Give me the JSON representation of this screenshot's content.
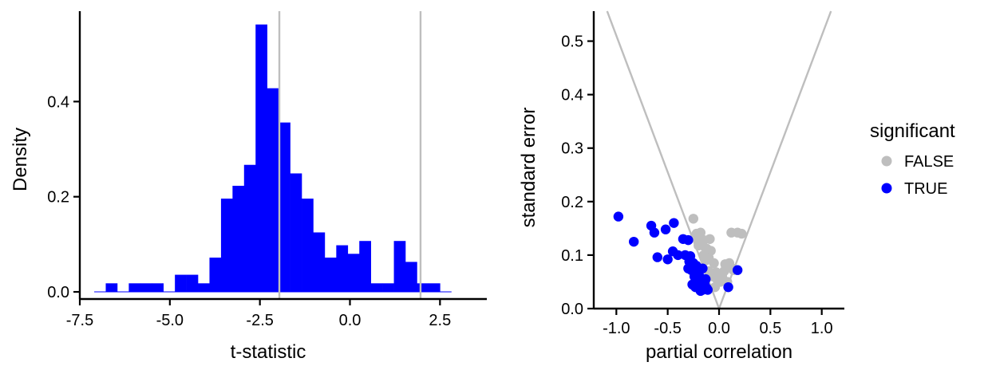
{
  "chart_data": [
    {
      "type": "histogram",
      "xlabel": "t-statistic",
      "ylabel": "Density",
      "xlim": [
        -7.5,
        3.8
      ],
      "ylim": [
        -0.015,
        0.59
      ],
      "xticks": [
        -7.5,
        -5.0,
        -2.5,
        0.0,
        2.5
      ],
      "xtick_labels": [
        "-7.5",
        "-5.0",
        "-2.5",
        "0.0",
        "2.5"
      ],
      "yticks": [
        0.0,
        0.2,
        0.4
      ],
      "ytick_labels": [
        "0.0",
        "0.2",
        "0.4"
      ],
      "bar_color": "#0000ff",
      "reference_line_color": "#bebebe",
      "reference_lines_x": [
        -1.96,
        1.96
      ],
      "bins": [
        {
          "x0": -7.1,
          "x1": -6.78,
          "density": 0.0
        },
        {
          "x0": -6.78,
          "x1": -6.46,
          "density": 0.018
        },
        {
          "x0": -6.46,
          "x1": -6.14,
          "density": 0.0
        },
        {
          "x0": -6.14,
          "x1": -5.82,
          "density": 0.018
        },
        {
          "x0": -5.82,
          "x1": -5.5,
          "density": 0.018
        },
        {
          "x0": -5.5,
          "x1": -5.18,
          "density": 0.018
        },
        {
          "x0": -5.18,
          "x1": -4.86,
          "density": 0.0
        },
        {
          "x0": -4.86,
          "x1": -4.54,
          "density": 0.036
        },
        {
          "x0": -4.54,
          "x1": -4.22,
          "density": 0.036
        },
        {
          "x0": -4.22,
          "x1": -3.9,
          "density": 0.018
        },
        {
          "x0": -3.9,
          "x1": -3.58,
          "density": 0.072
        },
        {
          "x0": -3.58,
          "x1": -3.26,
          "density": 0.196
        },
        {
          "x0": -3.26,
          "x1": -2.94,
          "density": 0.223
        },
        {
          "x0": -2.94,
          "x1": -2.62,
          "density": 0.267
        },
        {
          "x0": -2.62,
          "x1": -2.3,
          "density": 0.562
        },
        {
          "x0": -2.3,
          "x1": -1.98,
          "density": 0.428
        },
        {
          "x0": -1.98,
          "x1": -1.66,
          "density": 0.356
        },
        {
          "x0": -1.66,
          "x1": -1.34,
          "density": 0.249
        },
        {
          "x0": -1.34,
          "x1": -1.02,
          "density": 0.196
        },
        {
          "x0": -1.02,
          "x1": -0.7,
          "density": 0.125
        },
        {
          "x0": -0.7,
          "x1": -0.38,
          "density": 0.072
        },
        {
          "x0": -0.38,
          "x1": -0.06,
          "density": 0.098
        },
        {
          "x0": -0.06,
          "x1": 0.26,
          "density": 0.08
        },
        {
          "x0": 0.26,
          "x1": 0.58,
          "density": 0.107
        },
        {
          "x0": 0.58,
          "x1": 0.9,
          "density": 0.018
        },
        {
          "x0": 0.9,
          "x1": 1.22,
          "density": 0.018
        },
        {
          "x0": 1.22,
          "x1": 1.54,
          "density": 0.107
        },
        {
          "x0": 1.54,
          "x1": 1.86,
          "density": 0.063
        },
        {
          "x0": 1.86,
          "x1": 2.18,
          "density": 0.018
        },
        {
          "x0": 2.18,
          "x1": 2.5,
          "density": 0.018
        },
        {
          "x0": 2.5,
          "x1": 2.82,
          "density": 0.0
        }
      ]
    },
    {
      "type": "scatter",
      "xlabel": "partial correlation",
      "ylabel": "standard error",
      "xlim": [
        -1.22,
        1.22
      ],
      "ylim": [
        0.0,
        0.556
      ],
      "xticks": [
        -1.0,
        -0.5,
        0.0,
        0.5,
        1.0
      ],
      "xtick_labels": [
        "-1.0",
        "-0.5",
        "0.0",
        "0.5",
        "1.0"
      ],
      "yticks": [
        0.0,
        0.1,
        0.2,
        0.3,
        0.4,
        0.5
      ],
      "ytick_labels": [
        "0.0",
        "0.1",
        "0.2",
        "0.3",
        "0.4",
        "0.5"
      ],
      "funnel_lines_slope": 1.96,
      "funnel_line_color": "#bebebe",
      "legend": {
        "title": "significant",
        "position": "right",
        "entries": [
          {
            "label": "FALSE",
            "color": "#bebebe"
          },
          {
            "label": "TRUE",
            "color": "#0000ff"
          }
        ]
      },
      "series": [
        {
          "name": "FALSE",
          "color": "#bebebe",
          "points": [
            [
              -0.25,
              0.168
            ],
            [
              -0.22,
              0.14
            ],
            [
              -0.18,
              0.142
            ],
            [
              -0.15,
              0.128
            ],
            [
              -0.2,
              0.118
            ],
            [
              -0.12,
              0.112
            ],
            [
              -0.08,
              0.108
            ],
            [
              -0.1,
              0.095
            ],
            [
              -0.05,
              0.085
            ],
            [
              -0.15,
              0.1
            ],
            [
              -0.06,
              0.06
            ],
            [
              -0.02,
              0.055
            ],
            [
              0.03,
              0.06
            ],
            [
              0.05,
              0.07
            ],
            [
              0.06,
              0.083
            ],
            [
              0.1,
              0.085
            ],
            [
              0.13,
              0.075
            ],
            [
              0.08,
              0.05
            ],
            [
              0.12,
              0.142
            ],
            [
              0.18,
              0.142
            ],
            [
              0.22,
              0.14
            ],
            [
              0.14,
              0.072
            ],
            [
              -0.04,
              0.04
            ],
            [
              -0.1,
              0.07
            ],
            [
              -0.13,
              0.09
            ],
            [
              -0.2,
              0.13
            ],
            [
              -0.16,
              0.118
            ],
            [
              -0.09,
              0.13
            ],
            [
              -0.03,
              0.068
            ],
            [
              0.01,
              0.05
            ]
          ]
        },
        {
          "name": "TRUE",
          "color": "#0000ff",
          "points": [
            [
              -0.98,
              0.172
            ],
            [
              -0.83,
              0.125
            ],
            [
              -0.66,
              0.155
            ],
            [
              -0.63,
              0.142
            ],
            [
              -0.52,
              0.148
            ],
            [
              -0.44,
              0.16
            ],
            [
              -0.6,
              0.096
            ],
            [
              -0.5,
              0.092
            ],
            [
              -0.45,
              0.107
            ],
            [
              -0.4,
              0.1
            ],
            [
              -0.35,
              0.13
            ],
            [
              -0.3,
              0.128
            ],
            [
              -0.33,
              0.1
            ],
            [
              -0.28,
              0.098
            ],
            [
              -0.3,
              0.075
            ],
            [
              -0.27,
              0.072
            ],
            [
              -0.24,
              0.068
            ],
            [
              -0.2,
              0.062
            ],
            [
              -0.18,
              0.058
            ],
            [
              -0.22,
              0.05
            ],
            [
              -0.2,
              0.045
            ],
            [
              -0.17,
              0.042
            ],
            [
              -0.15,
              0.04
            ],
            [
              -0.12,
              0.038
            ],
            [
              -0.16,
              0.035
            ],
            [
              -0.19,
              0.05
            ],
            [
              -0.23,
              0.04
            ],
            [
              -0.26,
              0.045
            ],
            [
              -0.14,
              0.045
            ],
            [
              -0.13,
              0.055
            ],
            [
              -0.25,
              0.085
            ],
            [
              -0.29,
              0.088
            ],
            [
              -0.22,
              0.08
            ],
            [
              0.09,
              0.04
            ],
            [
              0.18,
              0.072
            ],
            [
              -0.21,
              0.055
            ],
            [
              -0.18,
              0.033
            ],
            [
              -0.11,
              0.035
            ],
            [
              -0.16,
              0.075
            ],
            [
              -0.24,
              0.06
            ]
          ]
        }
      ]
    }
  ]
}
